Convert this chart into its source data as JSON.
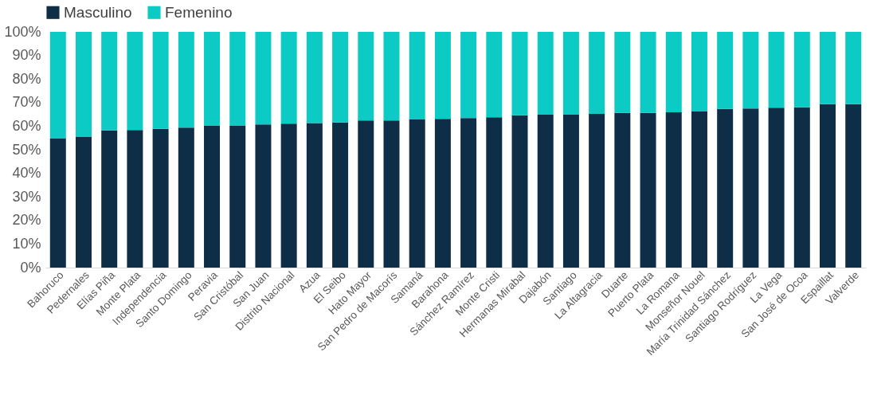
{
  "chart_data": {
    "type": "bar",
    "stacked": true,
    "legend": "top",
    "grid": false,
    "categories": [
      "Bahoruco",
      "Pedernales",
      "Elías Piña",
      "Monte Plata",
      "Independencia",
      "Santo Domingo",
      "Peravia",
      "San Cristóbal",
      "San Juan",
      "Distrito Nacional",
      "Azua",
      "El Seibo",
      "Hato Mayor",
      "San Pedro de Macorís",
      "Samaná",
      "Barahona",
      "Sánchez Ramírez",
      "Monte Cristi",
      "Hermanas Mirabal",
      "Dajabón",
      "Santiago",
      "La Altagracia",
      "Duarte",
      "Puerto Plata",
      "La Romana",
      "Monseñor Nouel",
      "María Trinidad Sánchez",
      "Santiago Rodríguez",
      "La Vega",
      "San José de Ocoa",
      "Espaillat",
      "Valverde"
    ],
    "series": [
      {
        "name": "Masculino",
        "color": "#0e2d47",
        "values": [
          54.9,
          55.6,
          58.2,
          58.4,
          58.9,
          59.4,
          60.3,
          60.3,
          60.7,
          61.1,
          61.3,
          61.6,
          62.4,
          62.4,
          62.8,
          63.1,
          63.4,
          63.8,
          64.6,
          64.9,
          64.9,
          65.2,
          65.6,
          65.6,
          65.9,
          66.2,
          67.3,
          67.5,
          67.8,
          68.0,
          69.3,
          69.3
        ]
      },
      {
        "name": "Femenino",
        "color": "#0ccbc5",
        "values": [
          45.1,
          44.4,
          41.8,
          41.6,
          41.1,
          40.6,
          39.7,
          39.7,
          39.3,
          38.9,
          38.7,
          38.4,
          37.6,
          37.6,
          37.2,
          36.9,
          36.6,
          36.2,
          35.4,
          35.1,
          35.1,
          34.8,
          34.4,
          34.4,
          34.1,
          33.8,
          32.7,
          32.5,
          32.2,
          32.0,
          30.7,
          30.7
        ]
      }
    ],
    "ylim": [
      0,
      100
    ],
    "yticks": [
      {
        "value": 0,
        "label": "0%"
      },
      {
        "value": 10,
        "label": "10%"
      },
      {
        "value": 20,
        "label": "20%"
      },
      {
        "value": 30,
        "label": "30%"
      },
      {
        "value": 40,
        "label": "40%"
      },
      {
        "value": 50,
        "label": "50%"
      },
      {
        "value": 60,
        "label": "60%"
      },
      {
        "value": 70,
        "label": "70%"
      },
      {
        "value": 80,
        "label": "80%"
      },
      {
        "value": 90,
        "label": "90%"
      },
      {
        "value": 100,
        "label": "100%"
      }
    ]
  }
}
